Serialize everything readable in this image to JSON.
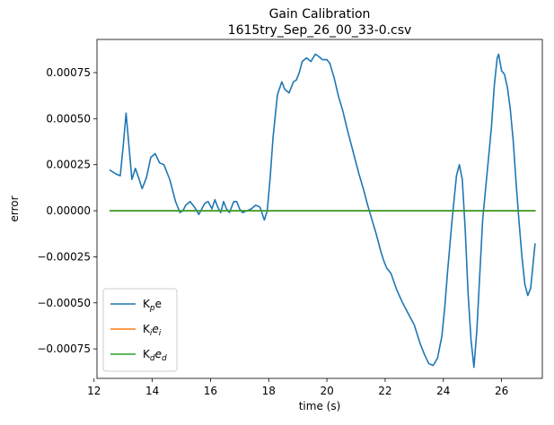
{
  "chart_data": {
    "type": "line",
    "title": "Gain Calibration",
    "subtitle": "1615try_Sep_26_00_33-0.csv",
    "xlabel": "time (s)",
    "ylabel": "error",
    "xlim": [
      12.1,
      27.4
    ],
    "ylim": [
      -0.00091,
      0.00093
    ],
    "xticks": [
      12,
      14,
      16,
      18,
      20,
      22,
      24,
      26
    ],
    "xtick_labels": [
      "12",
      "14",
      "16",
      "18",
      "20",
      "22",
      "24",
      "26"
    ],
    "yticks": [
      -0.00075,
      -0.0005,
      -0.00025,
      0.0,
      0.00025,
      0.0005,
      0.00075
    ],
    "ytick_labels": [
      "−0.00075",
      "−0.00050",
      "−0.00025",
      "0.00000",
      "0.00025",
      "0.00050",
      "0.00075"
    ],
    "grid": false,
    "legend_position": "lower-left",
    "series": [
      {
        "name": "K_p e",
        "legend": {
          "base": "K",
          "sub": "p",
          "tail": "e",
          "tail_italic": false,
          "tail_sub": ""
        },
        "color": "#1f77b4",
        "x": [
          12.55,
          12.75,
          12.9,
          13.0,
          13.1,
          13.2,
          13.3,
          13.42,
          13.55,
          13.65,
          13.8,
          13.95,
          14.1,
          14.25,
          14.4,
          14.6,
          14.8,
          14.95,
          15.05,
          15.15,
          15.3,
          15.45,
          15.6,
          15.7,
          15.8,
          15.92,
          16.05,
          16.15,
          16.25,
          16.35,
          16.45,
          16.55,
          16.65,
          16.8,
          16.9,
          17.0,
          17.1,
          17.25,
          17.4,
          17.55,
          17.7,
          17.85,
          17.95,
          18.05,
          18.15,
          18.3,
          18.45,
          18.55,
          18.7,
          18.85,
          18.95,
          19.05,
          19.15,
          19.3,
          19.45,
          19.6,
          19.7,
          19.85,
          20.0,
          20.1,
          20.25,
          20.4,
          20.55,
          20.7,
          20.85,
          21.0,
          21.1,
          21.25,
          21.4,
          21.55,
          21.7,
          21.85,
          21.95,
          22.05,
          22.2,
          22.4,
          22.6,
          22.8,
          23.0,
          23.2,
          23.35,
          23.5,
          23.65,
          23.8,
          23.95,
          24.05,
          24.15,
          24.3,
          24.45,
          24.55,
          24.65,
          24.75,
          24.85,
          24.95,
          25.05,
          25.15,
          25.25,
          25.35,
          25.5,
          25.65,
          25.75,
          25.85,
          25.9,
          26.0,
          26.1,
          26.2,
          26.3,
          26.4,
          26.5,
          26.6,
          26.7,
          26.8,
          26.9,
          27.0,
          27.15
        ],
        "y": [
          0.00022,
          0.0002,
          0.00019,
          0.00035,
          0.00053,
          0.00035,
          0.00017,
          0.00023,
          0.00017,
          0.00012,
          0.00018,
          0.00029,
          0.00031,
          0.00026,
          0.00025,
          0.00017,
          5e-05,
          -1e-05,
          0.0,
          3e-05,
          5e-05,
          2e-05,
          -2e-05,
          1e-05,
          4e-05,
          5e-05,
          1e-05,
          6e-05,
          2e-05,
          -1e-05,
          5e-05,
          1e-05,
          -1e-05,
          5e-05,
          5e-05,
          1e-05,
          -1e-05,
          0.0,
          1e-05,
          3e-05,
          2e-05,
          -5e-05,
          0.0,
          0.00018,
          0.0004,
          0.00063,
          0.0007,
          0.00066,
          0.00064,
          0.0007,
          0.00071,
          0.00075,
          0.00081,
          0.00083,
          0.00081,
          0.00085,
          0.00084,
          0.00082,
          0.00082,
          0.0008,
          0.00072,
          0.00062,
          0.00054,
          0.00044,
          0.00035,
          0.00026,
          0.0002,
          0.00012,
          3e-05,
          -5e-05,
          -0.00013,
          -0.00022,
          -0.00027,
          -0.00031,
          -0.00034,
          -0.00043,
          -0.0005,
          -0.00056,
          -0.00062,
          -0.00072,
          -0.00078,
          -0.00083,
          -0.00084,
          -0.0008,
          -0.00068,
          -0.00052,
          -0.00032,
          -5e-05,
          0.00019,
          0.00025,
          0.00017,
          -0.0001,
          -0.00045,
          -0.0007,
          -0.00085,
          -0.00065,
          -0.00035,
          -5e-05,
          0.0002,
          0.00045,
          0.00068,
          0.00083,
          0.00085,
          0.00076,
          0.00074,
          0.00067,
          0.00055,
          0.00038,
          0.00015,
          -6e-05,
          -0.00025,
          -0.0004,
          -0.00046,
          -0.00042,
          -0.00018
        ]
      },
      {
        "name": "K_i e_i",
        "legend": {
          "base": "K",
          "sub": "i",
          "tail": "e",
          "tail_italic": true,
          "tail_sub": "i"
        },
        "color": "#ff7f0e",
        "x": [
          12.55,
          27.15
        ],
        "y": [
          0.0,
          0.0
        ]
      },
      {
        "name": "K_d e_d",
        "legend": {
          "base": "K",
          "sub": "d",
          "tail": "e",
          "tail_italic": true,
          "tail_sub": "d"
        },
        "color": "#2ca02c",
        "x": [
          12.55,
          27.15
        ],
        "y": [
          0.0,
          0.0
        ]
      }
    ]
  }
}
